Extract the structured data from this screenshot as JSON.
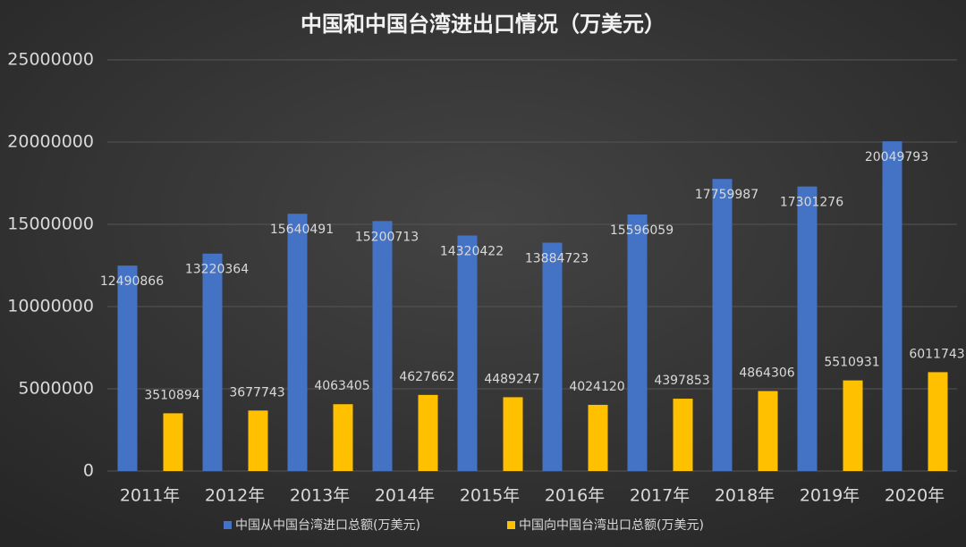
{
  "chart_data": {
    "type": "bar",
    "title": "中国和中国台湾进出口情况（万美元）",
    "categories": [
      "2011年",
      "2012年",
      "2013年",
      "2014年",
      "2015年",
      "2016年",
      "2017年",
      "2018年",
      "2019年",
      "2020年"
    ],
    "series": [
      {
        "name": "中国从中国台湾进口总额(万美元)",
        "color": "#4472c4",
        "values": [
          12490866,
          13220364,
          15640491,
          15200713,
          14320422,
          13884723,
          15596059,
          17759987,
          17301276,
          20049793
        ]
      },
      {
        "name": "中国向中国台湾出口总额(万美元)",
        "color": "#ffc000",
        "values": [
          3510894,
          3677743,
          4063405,
          4627662,
          4489247,
          4024120,
          4397853,
          4864306,
          5510931,
          6011743
        ]
      }
    ],
    "ylim": [
      0,
      25000000
    ],
    "yticks": [
      0,
      5000000,
      10000000,
      15000000,
      20000000,
      25000000
    ],
    "grid": true,
    "legend": "bottom"
  }
}
